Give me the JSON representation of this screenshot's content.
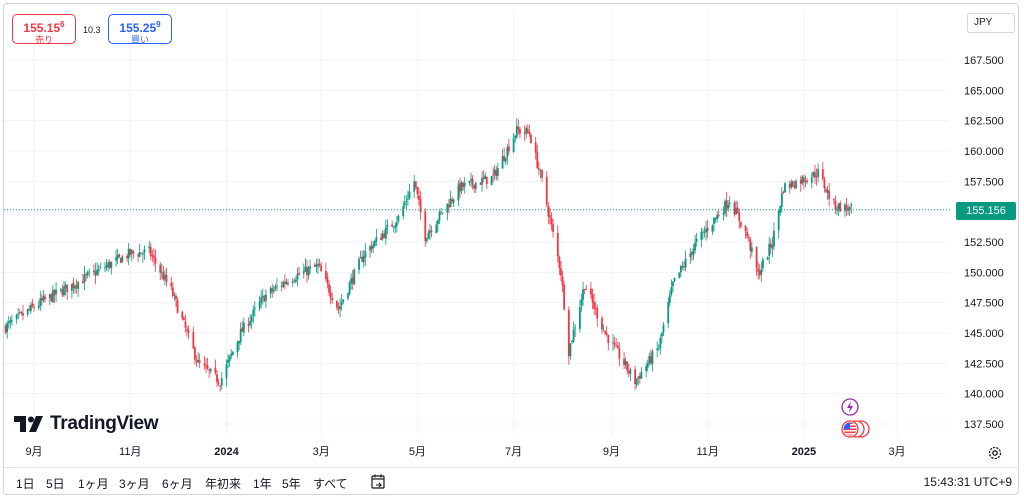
{
  "trade_panel": {
    "sell": {
      "price_main": "155.15",
      "price_sup": "6",
      "label": "売り"
    },
    "spread": "10.3",
    "buy": {
      "price_main": "155.25",
      "price_sup": "9",
      "label": "買い"
    }
  },
  "currency_selector": {
    "value": "JPY"
  },
  "brand": {
    "name": "TradingView"
  },
  "current_price": "155.156",
  "chart_data": {
    "type": "candlestick",
    "title": "",
    "y_tick_labels": [
      "167.500",
      "165.000",
      "162.500",
      "160.000",
      "157.500",
      "155.000",
      "152.500",
      "150.000",
      "147.500",
      "145.000",
      "142.500",
      "140.000",
      "137.500"
    ],
    "x_tick_labels": [
      "9月",
      "11月",
      "2024",
      "3月",
      "5月",
      "7月",
      "9月",
      "11月",
      "2025",
      "3月"
    ],
    "ylim": [
      135.5,
      169.5
    ],
    "grid": true,
    "price_line": 155.156,
    "colors": {
      "up": "#089981",
      "down": "#f23645"
    },
    "series_anchors": [
      {
        "date": "2023-08-14",
        "close": 145.5
      },
      {
        "date": "2023-09-05",
        "close": 147.5
      },
      {
        "date": "2023-10-03",
        "close": 149.5
      },
      {
        "date": "2023-10-31",
        "close": 151.5
      },
      {
        "date": "2023-11-13",
        "close": 151.7
      },
      {
        "date": "2023-11-27",
        "close": 148.5
      },
      {
        "date": "2023-12-14",
        "close": 142.5
      },
      {
        "date": "2023-12-28",
        "close": 141.0
      },
      {
        "date": "2024-01-10",
        "close": 145.0
      },
      {
        "date": "2024-01-25",
        "close": 148.0
      },
      {
        "date": "2024-02-10",
        "close": 149.5
      },
      {
        "date": "2024-02-28",
        "close": 150.5
      },
      {
        "date": "2024-03-12",
        "close": 147.0
      },
      {
        "date": "2024-03-28",
        "close": 151.5
      },
      {
        "date": "2024-04-19",
        "close": 154.5
      },
      {
        "date": "2024-04-29",
        "close": 157.5
      },
      {
        "date": "2024-05-06",
        "close": 153.0
      },
      {
        "date": "2024-05-28",
        "close": 157.0
      },
      {
        "date": "2024-06-18",
        "close": 157.8
      },
      {
        "date": "2024-07-03",
        "close": 161.7
      },
      {
        "date": "2024-07-11",
        "close": 161.5
      },
      {
        "date": "2024-07-19",
        "close": 157.5
      },
      {
        "date": "2024-07-31",
        "close": 150.0
      },
      {
        "date": "2024-08-05",
        "close": 143.5
      },
      {
        "date": "2024-08-15",
        "close": 149.0
      },
      {
        "date": "2024-08-28",
        "close": 145.0
      },
      {
        "date": "2024-09-16",
        "close": 141.0
      },
      {
        "date": "2024-10-01",
        "close": 143.8
      },
      {
        "date": "2024-10-10",
        "close": 149.0
      },
      {
        "date": "2024-10-25",
        "close": 152.5
      },
      {
        "date": "2024-11-15",
        "close": 156.0
      },
      {
        "date": "2024-11-26",
        "close": 153.0
      },
      {
        "date": "2024-12-03",
        "close": 149.8
      },
      {
        "date": "2024-12-12",
        "close": 152.5
      },
      {
        "date": "2024-12-19",
        "close": 157.0
      },
      {
        "date": "2025-01-10",
        "close": 158.2
      },
      {
        "date": "2025-01-20",
        "close": 155.5
      },
      {
        "date": "2025-01-31",
        "close": 155.2
      }
    ]
  },
  "toolbar": {
    "ranges": [
      "1日",
      "5日",
      "1ヶ月",
      "3ヶ月",
      "6ヶ月",
      "年初来",
      "1年",
      "5年",
      "すべて"
    ],
    "clock": "15:43:31 UTC+9"
  },
  "icons": {
    "compare": "compare-icon",
    "settings": "settings-gear-icon",
    "event_lightning": "lightning-event-icon",
    "event_flag": "us-flag-event-icon"
  }
}
